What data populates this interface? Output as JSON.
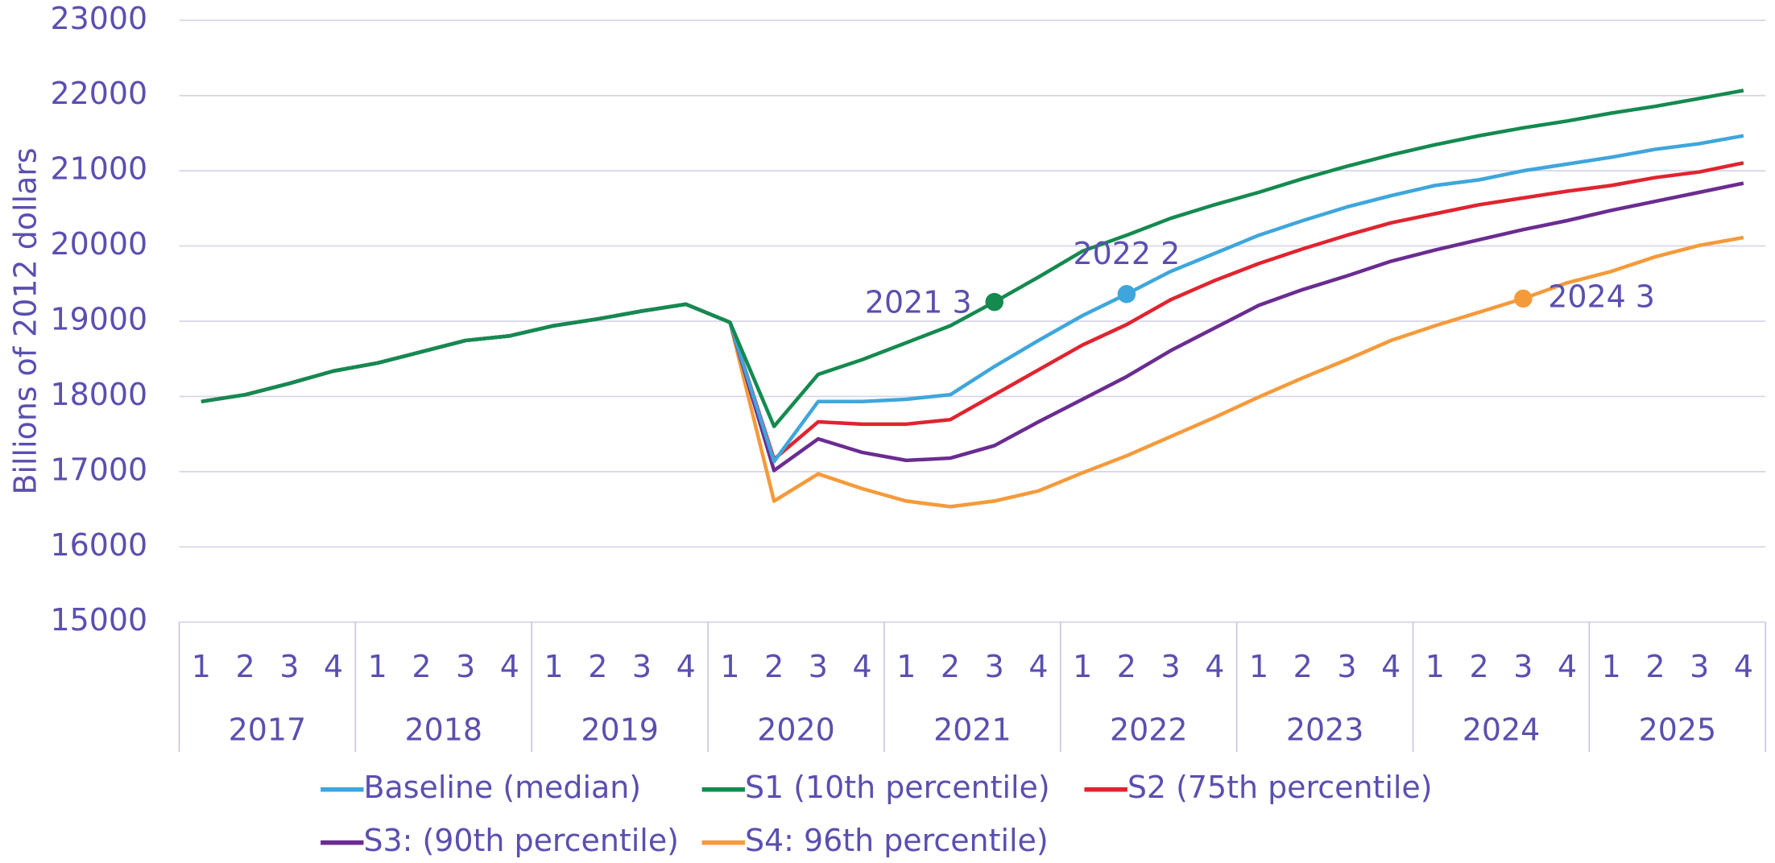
{
  "chart_data": {
    "type": "line",
    "y_label": "Billions of 2012 dollars",
    "categories": [
      "1",
      "2",
      "3",
      "4",
      "1",
      "2",
      "3",
      "4",
      "1",
      "2",
      "3",
      "4",
      "1",
      "2",
      "3",
      "4",
      "1",
      "2",
      "3",
      "4",
      "1",
      "2",
      "3",
      "4",
      "1",
      "2",
      "3",
      "4",
      "1",
      "2",
      "3",
      "4",
      "1",
      "2",
      "3",
      "4"
    ],
    "groups": [
      "2017",
      "2018",
      "2019",
      "2020",
      "2021",
      "2022",
      "2023",
      "2024",
      "2025"
    ],
    "ylim": [
      15000,
      23000
    ],
    "yticks": [
      15000,
      16000,
      17000,
      18000,
      19000,
      20000,
      21000,
      22000,
      23000
    ],
    "grid": true,
    "series": [
      {
        "name": "Baseline (median)",
        "color": "#3ea6dc",
        "values": [
          17932,
          18023,
          18173,
          18338,
          18444,
          18594,
          18744,
          18805,
          18940,
          19030,
          19135,
          19226,
          18985,
          17135,
          17932,
          17932,
          17962,
          18023,
          18398,
          18744,
          19075,
          19361,
          19662,
          19902,
          20143,
          20338,
          20519,
          20669,
          20805,
          20880,
          21000,
          21090,
          21180,
          21286,
          21361,
          21466
        ]
      },
      {
        "name": "S1 (10th percentile)",
        "color": "#148a4f",
        "values": [
          17932,
          18023,
          18173,
          18338,
          18444,
          18594,
          18744,
          18805,
          18940,
          19030,
          19135,
          19226,
          18985,
          17602,
          18293,
          18489,
          18714,
          18940,
          19256,
          19586,
          19932,
          20143,
          20368,
          20549,
          20714,
          20895,
          21060,
          21211,
          21346,
          21466,
          21571,
          21662,
          21767,
          21857,
          21962,
          22068
        ]
      },
      {
        "name": "S2 (75th percentile)",
        "color": "#e0242f",
        "values": [
          17932,
          18023,
          18173,
          18338,
          18444,
          18594,
          18744,
          18805,
          18940,
          19030,
          19135,
          19226,
          18985,
          17165,
          17662,
          17632,
          17632,
          17692,
          18023,
          18353,
          18684,
          18955,
          19286,
          19541,
          19767,
          19962,
          20143,
          20308,
          20429,
          20549,
          20639,
          20729,
          20805,
          20910,
          20985,
          21105
        ]
      },
      {
        "name": "S3: (90th percentile)",
        "color": "#6a2c91",
        "values": [
          17932,
          18023,
          18173,
          18338,
          18444,
          18594,
          18744,
          18805,
          18940,
          19030,
          19135,
          19226,
          18985,
          17015,
          17436,
          17256,
          17150,
          17180,
          17346,
          17662,
          17962,
          18263,
          18609,
          18910,
          19211,
          19421,
          19602,
          19797,
          19947,
          20083,
          20218,
          20338,
          20474,
          20594,
          20714,
          20835
        ]
      },
      {
        "name": "S4: 96th percentile)",
        "color": "#f59a3a",
        "values": [
          17932,
          18023,
          18173,
          18338,
          18444,
          18594,
          18744,
          18805,
          18940,
          19030,
          19135,
          19226,
          18985,
          16609,
          16970,
          16774,
          16609,
          16534,
          16609,
          16744,
          16985,
          17211,
          17466,
          17722,
          17992,
          18248,
          18489,
          18744,
          18940,
          19120,
          19301,
          19511,
          19662,
          19857,
          20008,
          20113
        ]
      }
    ],
    "annotations": [
      {
        "text": "2021 3",
        "series": 1,
        "index": 18
      },
      {
        "text": "2022 2",
        "series": 0,
        "index": 21
      },
      {
        "text": "2024 3",
        "series": 4,
        "index": 30
      }
    ]
  }
}
